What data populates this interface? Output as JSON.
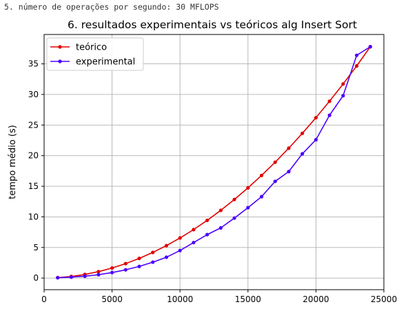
{
  "top_note": "5. número de operações por segundo: 30 MFLOPS",
  "chart_data": {
    "type": "line",
    "title": "6. resultados experimentais vs teóricos alg Insert Sort",
    "xlabel": "",
    "ylabel": "tempo médio (s)",
    "xlim": [
      0,
      25000
    ],
    "ylim": [
      -1.9,
      39.8
    ],
    "x_ticks": [
      0,
      5000,
      10000,
      15000,
      20000,
      25000
    ],
    "y_ticks": [
      0,
      5,
      10,
      15,
      20,
      25,
      30,
      35
    ],
    "grid": true,
    "legend_position": "upper-left",
    "x": [
      1000,
      2000,
      3000,
      4000,
      5000,
      6000,
      7000,
      8000,
      9000,
      10000,
      11000,
      12000,
      13000,
      14000,
      15000,
      16000,
      17000,
      18000,
      19000,
      20000,
      21000,
      22000,
      23000,
      24000
    ],
    "series": [
      {
        "name": "teórico",
        "color": "#e00000",
        "values": [
          0.07,
          0.26,
          0.59,
          1.05,
          1.64,
          2.36,
          3.21,
          4.19,
          5.3,
          6.55,
          7.92,
          9.43,
          11.07,
          12.84,
          14.74,
          16.77,
          18.93,
          21.22,
          23.65,
          26.2,
          28.89,
          31.71,
          34.66,
          37.8
        ]
      },
      {
        "name": "experimental",
        "color": "#4b00ff",
        "values": [
          0.05,
          0.15,
          0.3,
          0.55,
          0.9,
          1.35,
          1.9,
          2.6,
          3.4,
          4.5,
          5.8,
          7.1,
          8.2,
          9.8,
          11.5,
          13.3,
          15.8,
          17.4,
          20.3,
          22.6,
          26.6,
          29.8,
          36.4,
          37.8
        ]
      }
    ]
  }
}
